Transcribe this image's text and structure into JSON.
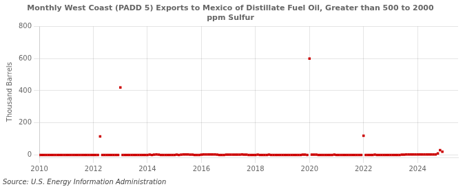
{
  "chart_data": {
    "type": "scatter",
    "title": "Monthly West Coast (PADD 5) Exports to Mexico of Distillate Fuel Oil, Greater than 500 to 2000\nppm Sulfur",
    "ylabel": "Thousand Barrels",
    "source": "Source: U.S. Energy Information Administration",
    "color": "#cc0000",
    "marker": "square",
    "grid": true,
    "xlim": [
      2010,
      2025.5
    ],
    "ylim": [
      -15,
      800
    ],
    "xticks": [
      2010,
      2012,
      2014,
      2016,
      2018,
      2020,
      2022,
      2024
    ],
    "yticks": [
      0,
      200,
      400,
      600,
      800
    ],
    "x": [
      2010.0,
      2010.083,
      2010.167,
      2010.25,
      2010.333,
      2010.417,
      2010.5,
      2010.583,
      2010.667,
      2010.75,
      2010.833,
      2010.917,
      2011.0,
      2011.083,
      2011.167,
      2011.25,
      2011.333,
      2011.417,
      2011.5,
      2011.583,
      2011.667,
      2011.75,
      2011.833,
      2011.917,
      2012.0,
      2012.083,
      2012.167,
      2012.25,
      2012.333,
      2012.417,
      2012.5,
      2012.583,
      2012.667,
      2012.75,
      2012.833,
      2012.917,
      2013.0,
      2013.083,
      2013.167,
      2013.25,
      2013.333,
      2013.417,
      2013.5,
      2013.583,
      2013.667,
      2013.75,
      2013.833,
      2013.917,
      2014.0,
      2014.083,
      2014.167,
      2014.25,
      2014.333,
      2014.417,
      2014.5,
      2014.583,
      2014.667,
      2014.75,
      2014.833,
      2014.917,
      2015.0,
      2015.083,
      2015.167,
      2015.25,
      2015.333,
      2015.417,
      2015.5,
      2015.583,
      2015.667,
      2015.75,
      2015.833,
      2015.917,
      2016.0,
      2016.083,
      2016.167,
      2016.25,
      2016.333,
      2016.417,
      2016.5,
      2016.583,
      2016.667,
      2016.75,
      2016.833,
      2016.917,
      2017.0,
      2017.083,
      2017.167,
      2017.25,
      2017.333,
      2017.417,
      2017.5,
      2017.583,
      2017.667,
      2017.75,
      2017.833,
      2017.917,
      2018.0,
      2018.083,
      2018.167,
      2018.25,
      2018.333,
      2018.417,
      2018.5,
      2018.583,
      2018.667,
      2018.75,
      2018.833,
      2018.917,
      2019.0,
      2019.083,
      2019.167,
      2019.25,
      2019.333,
      2019.417,
      2019.5,
      2019.583,
      2019.667,
      2019.75,
      2019.833,
      2019.917,
      2020.0,
      2020.083,
      2020.167,
      2020.25,
      2020.333,
      2020.417,
      2020.5,
      2020.583,
      2020.667,
      2020.75,
      2020.833,
      2020.917,
      2021.0,
      2021.083,
      2021.167,
      2021.25,
      2021.333,
      2021.417,
      2021.5,
      2021.583,
      2021.667,
      2021.75,
      2021.833,
      2021.917,
      2022.0,
      2022.083,
      2022.167,
      2022.25,
      2022.333,
      2022.417,
      2022.5,
      2022.583,
      2022.667,
      2022.75,
      2022.833,
      2022.917,
      2023.0,
      2023.083,
      2023.167,
      2023.25,
      2023.333,
      2023.417,
      2023.5,
      2023.583,
      2023.667,
      2023.75,
      2023.833,
      2023.917,
      2024.0,
      2024.083,
      2024.167,
      2024.25,
      2024.333,
      2024.417,
      2024.5,
      2024.583,
      2024.667,
      2024.75,
      2024.833,
      2024.917
    ],
    "values": [
      0,
      0,
      0,
      0,
      0,
      0,
      0,
      0,
      0,
      0,
      0,
      0,
      0,
      0,
      0,
      0,
      0,
      0,
      0,
      0,
      0,
      0,
      0,
      0,
      0,
      0,
      0,
      115,
      0,
      0,
      0,
      0,
      0,
      0,
      0,
      0,
      420,
      0,
      0,
      0,
      0,
      0,
      0,
      0,
      0,
      0,
      0,
      0,
      0,
      2,
      0,
      2,
      3,
      2,
      0,
      0,
      0,
      0,
      0,
      0,
      0,
      2,
      0,
      2,
      3,
      3,
      3,
      2,
      2,
      0,
      0,
      0,
      2,
      3,
      3,
      3,
      3,
      3,
      3,
      2,
      0,
      0,
      0,
      2,
      2,
      2,
      2,
      2,
      2,
      2,
      3,
      2,
      2,
      0,
      0,
      0,
      0,
      2,
      0,
      0,
      0,
      0,
      2,
      0,
      0,
      0,
      0,
      0,
      0,
      0,
      0,
      0,
      0,
      0,
      0,
      0,
      0,
      2,
      2,
      0,
      600,
      2,
      2,
      2,
      0,
      0,
      0,
      0,
      0,
      0,
      0,
      2,
      0,
      0,
      0,
      0,
      0,
      0,
      0,
      0,
      0,
      0,
      0,
      0,
      120,
      0,
      0,
      0,
      0,
      2,
      0,
      0,
      0,
      0,
      0,
      0,
      0,
      0,
      0,
      0,
      0,
      2,
      2,
      3,
      3,
      3,
      3,
      3,
      3,
      3,
      3,
      3,
      3,
      3,
      3,
      3,
      3,
      10,
      30,
      20
    ]
  }
}
